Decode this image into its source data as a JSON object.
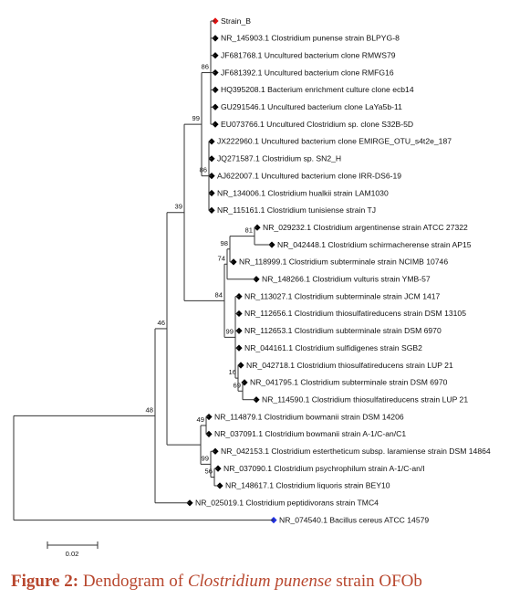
{
  "tree": {
    "leaves": [
      "Strain_B",
      "NR_145903.1 Clostridium punense strain BLPYG-8",
      "JF681768.1 Uncultured bacterium clone RMWS79",
      "JF681392.1 Uncultured bacterium clone RMFG16",
      "HQ395208.1 Bacterium enrichment culture clone ecb14",
      "GU291546.1 Uncultured bacterium clone LaYa5b-11",
      "EU073766.1 Uncultured Clostridium sp. clone S32B-5D",
      "JX222960.1 Uncultured bacterium clone EMIRGE_OTU_s4t2e_187",
      "JQ271587.1 Clostridium sp. SN2_H",
      "AJ622007.1 Uncultured bacterium clone IRR-DS6-19",
      "NR_134006.1 Clostridium hualkii strain LAM1030",
      "NR_115161.1 Clostridium tunisiense strain TJ",
      "NR_029232.1 Clostridium argentinense strain ATCC 27322",
      "NR_042448.1 Clostridium schirmacherense strain AP15",
      "NR_118999.1 Clostridium subterminale strain NCIMB 10746",
      "NR_148266.1 Clostridium vulturis strain YMB-57",
      "NR_113027.1 Clostridium subterminale strain JCM 1417",
      "NR_112656.1 Clostridium thiosulfatireducens strain DSM 13105",
      "NR_112653.1 Clostridium subterminale strain DSM 6970",
      "NR_044161.1 Clostridium sulfidigenes strain SGB2",
      "NR_042718.1 Clostridium thiosulfatireducens strain LUP 21",
      "NR_041795.1 Clostridium subterminale strain DSM 6970",
      "NR_114590.1 Clostridium thiosulfatireducens strain LUP 21",
      "NR_114879.1 Clostridium bowmanii strain DSM 14206",
      "NR_037091.1 Clostridium bowmanii strain A-1/C-an/C1",
      "NR_042153.1 Clostridium estertheticum subsp. laramiense strain DSM 14864",
      "NR_037090.1 Clostridium psychrophilum strain A-1/C-an/I",
      "NR_148617.1 Clostridium liquoris strain BEY10",
      "NR_025019.1 Clostridium peptidivorans strain TMC4",
      "NR_074540.1 Bacillus cereus ATCC 14579"
    ],
    "bootstrap": [
      86,
      99,
      86,
      39,
      81,
      98,
      74,
      84,
      99,
      16,
      69,
      49,
      99,
      56,
      46,
      48
    ]
  },
  "scale_bar": "0.02",
  "caption": {
    "label": "Figure 2:",
    "text": "Dendogram of",
    "species": "Clostridium punense",
    "rest": "strain OFOb"
  }
}
